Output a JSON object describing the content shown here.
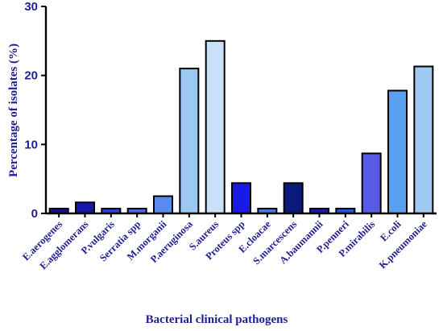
{
  "chart_data": {
    "type": "bar",
    "title": "",
    "xlabel": "Bacterial clinical pathogens",
    "ylabel": "Percentage of isolates (%)",
    "ylim": [
      0,
      30
    ],
    "yticks": [
      0,
      10,
      20,
      30
    ],
    "grid": false,
    "categories": [
      "E.aerogenes",
      "E.agglomerans",
      "P.vulgaris",
      "Serratia spp",
      "M.morganii",
      "P.aeruginosa",
      "S.aureus",
      "Proteus spp",
      "E.cloacae",
      "S.marcescens",
      "A.baumannii",
      "P.penneri",
      "P.mirabilis",
      "E.coli",
      "K.pneumoniae"
    ],
    "values": [
      0.7,
      1.6,
      0.7,
      0.7,
      2.5,
      21.0,
      25.0,
      4.4,
      0.7,
      4.4,
      0.7,
      0.7,
      8.7,
      17.8,
      21.3
    ],
    "bar_colors": [
      "#14148a",
      "#1616a8",
      "#2b3fd6",
      "#4a64e8",
      "#5a8cf0",
      "#9cc8f5",
      "#c8e0fa",
      "#1a1ae6",
      "#4a78e0",
      "#0a1a7a",
      "#1818b0",
      "#2a50e0",
      "#5a5ae8",
      "#5aa0f0",
      "#a0c8f5"
    ]
  }
}
